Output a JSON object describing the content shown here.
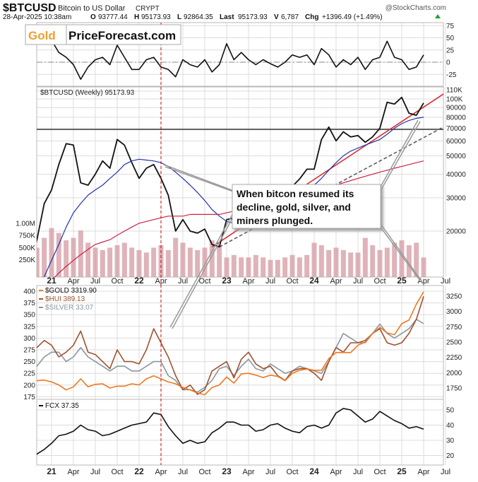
{
  "header": {
    "symbol": "$BTCUSD",
    "name": "Bitcoin to US Dollar",
    "exchange": "CRYPT",
    "source": "@StockCharts.com",
    "date": "28-Apr-2025 10:38am",
    "open_label": "O",
    "open": "93777.44",
    "high_label": "H",
    "high": "95173.93",
    "low_label": "L",
    "low": "92864.35",
    "last_label": "Last",
    "last": "95173.93",
    "volume_label": "V",
    "volume": "6,787",
    "change_label": "Chg",
    "change": "+1396.49 (+1.49%)",
    "change_color": "#2a9d2a"
  },
  "logo": {
    "part1": "Gold",
    "part2": "PriceForecast.com",
    "part1_color": "#f0a030"
  },
  "main_label": "$BTCUSD (Weekly) 95173.93",
  "callout": {
    "lines": [
      "When bitcon resumed its",
      "decline, gold, silver, and",
      "miners plunged."
    ]
  },
  "chart_data": {
    "type": "line",
    "x_tick_labels": [
      "21",
      "Apr",
      "Jul",
      "Oct",
      "22",
      "Apr",
      "Jul",
      "Oct",
      "23",
      "Apr",
      "Jul",
      "Oct",
      "24",
      "Apr",
      "Jul",
      "Oct",
      "25",
      "Apr",
      "Jul"
    ],
    "vertical_marker": {
      "date": "2022-04",
      "color": "#cc0000",
      "style": "dashed"
    },
    "x": [
      "2020-10",
      "2020-11",
      "2020-12",
      "2021-01",
      "2021-02",
      "2021-03",
      "2021-04",
      "2021-05",
      "2021-06",
      "2021-07",
      "2021-08",
      "2021-09",
      "2021-10",
      "2021-11",
      "2021-12",
      "2022-01",
      "2022-02",
      "2022-03",
      "2022-04",
      "2022-05",
      "2022-06",
      "2022-07",
      "2022-08",
      "2022-09",
      "2022-10",
      "2022-11",
      "2022-12",
      "2023-01",
      "2023-02",
      "2023-03",
      "2023-04",
      "2023-05",
      "2023-06",
      "2023-07",
      "2023-08",
      "2023-09",
      "2023-10",
      "2023-11",
      "2023-12",
      "2024-01",
      "2024-02",
      "2024-03",
      "2024-04",
      "2024-05",
      "2024-06",
      "2024-07",
      "2024-08",
      "2024-09",
      "2024-10",
      "2024-11",
      "2024-12",
      "2025-01",
      "2025-02",
      "2025-03",
      "2025-04"
    ],
    "panels": [
      {
        "id": "oscillator",
        "y_ticks": [
          75,
          50,
          25,
          0,
          -25
        ],
        "zero_line": true,
        "series": [
          {
            "color": "#111111",
            "values": [
              25,
              45,
              40,
              45,
              20,
              10,
              -5,
              -35,
              -10,
              5,
              10,
              -5,
              35,
              10,
              -15,
              -15,
              5,
              10,
              -10,
              -15,
              -30,
              5,
              -5,
              -10,
              5,
              -20,
              -5,
              38,
              5,
              20,
              5,
              -5,
              5,
              -3,
              -10,
              0,
              15,
              10,
              15,
              -5,
              28,
              15,
              -10,
              5,
              -5,
              10,
              -15,
              5,
              10,
              43,
              10,
              5,
              -15,
              -10,
              15
            ]
          }
        ]
      },
      {
        "id": "price",
        "scale": "log",
        "y_ticks": [
          "110K",
          "100K",
          "90000",
          "80000",
          "70000",
          "60000",
          "50000",
          "40000",
          "30000",
          "20000"
        ],
        "y_tick_values": [
          110000,
          100000,
          90000,
          80000,
          70000,
          60000,
          50000,
          40000,
          30000,
          20000
        ],
        "volume_ticks": [
          "1.00M",
          "750K",
          "500K",
          "250K"
        ],
        "volume_tick_values": [
          1000000,
          750000,
          500000,
          250000
        ],
        "horizontal_line": 69000,
        "trendlines": [
          {
            "color": "#dd2222",
            "style": "solid",
            "from": [
              "2022-11",
              16500
            ],
            "to": [
              "2025-07",
              108000
            ]
          },
          {
            "color": "#555555",
            "style": "dashed",
            "from": [
              "2022-12",
              16500
            ],
            "to": [
              "2025-07",
              72000
            ]
          }
        ],
        "series": [
          {
            "role": "price",
            "color": "#111111",
            "values": [
              13000,
              18000,
              28000,
              33000,
              45000,
              58000,
              57000,
              36000,
              35000,
              40000,
              47000,
              43000,
              61000,
              57000,
              46000,
              38000,
              43000,
              45000,
              38000,
              31000,
              20000,
              23000,
              20000,
              19500,
              20500,
              17000,
              16500,
              23000,
              23500,
              28000,
              29000,
              27000,
              30500,
              29000,
              26000,
              27000,
              34500,
              37700,
              42500,
              42500,
              61000,
              71000,
              60000,
              67000,
              63000,
              64000,
              59000,
              63000,
              70000,
              96000,
              94000,
              102000,
              84000,
              82000,
              95174
            ]
          },
          {
            "role": "ma-short",
            "color": "#2233aa",
            "values": [
              9000,
              10000,
              11500,
              14000,
              17000,
              21000,
              25000,
              28000,
              31000,
              33000,
              35000,
              38000,
              41000,
              45000,
              47000,
              48000,
              47500,
              47000,
              46000,
              44000,
              41000,
              38000,
              35000,
              32000,
              29000,
              26000,
              24000,
              22500,
              22000,
              22000,
              22500,
              23000,
              24000,
              25500,
              26500,
              27500,
              28500,
              30000,
              32000,
              35000,
              38000,
              42000,
              46000,
              50000,
              53000,
              55000,
              57000,
              59000,
              61000,
              65000,
              70000,
              74000,
              77000,
              79000,
              80000
            ]
          },
          {
            "role": "ma-long",
            "color": "#cc2244",
            "values": [
              9000,
              9500,
              10000,
              11000,
              12000,
              13000,
              14000,
              15000,
              16000,
              17000,
              17500,
              18000,
              19000,
              20000,
              21000,
              22000,
              22500,
              23000,
              23500,
              24000,
              24000,
              24000,
              24500,
              24500,
              24500,
              24500,
              24500,
              25000,
              25500,
              26000,
              26500,
              27000,
              27500,
              28000,
              28500,
              29000,
              29500,
              30000,
              31000,
              32000,
              33000,
              34000,
              35000,
              36000,
              37000,
              38000,
              39000,
              40000,
              41000,
              42000,
              43000,
              44000,
              45000,
              46000,
              47000
            ]
          },
          {
            "role": "volume",
            "color": "#d49aa2",
            "values": [
              600000,
              500000,
              700000,
              900000,
              800000,
              650000,
              700000,
              850000,
              600000,
              500000,
              450000,
              500000,
              550000,
              600000,
              500000,
              450000,
              400000,
              500000,
              550000,
              450000,
              700000,
              600000,
              500000,
              450000,
              500000,
              650000,
              550000,
              300000,
              350000,
              300000,
              300000,
              350000,
              300000,
              250000,
              250000,
              300000,
              350000,
              300000,
              350000,
              600000,
              550000,
              450000,
              500000,
              450000,
              400000,
              400000,
              700000,
              550000,
              450000,
              500000,
              600000,
              650000,
              550000,
              600000,
              300000
            ]
          }
        ]
      },
      {
        "id": "metals",
        "left_ticks": [
          400,
          375,
          350,
          325,
          300,
          275,
          250,
          225,
          200,
          175
        ],
        "right_ticks": [
          3250,
          3000,
          2750,
          2500,
          2250,
          2000,
          1750
        ],
        "series": [
          {
            "name": "$GOLD 3319.90",
            "color": "#f07820",
            "axis": "right",
            "values": [
              1900,
              1870,
              1880,
              1850,
              1800,
              1720,
              1770,
              1900,
              1770,
              1810,
              1820,
              1750,
              1780,
              1780,
              1820,
              1800,
              1900,
              1950,
              1900,
              1850,
              1820,
              1760,
              1720,
              1670,
              1640,
              1760,
              1800,
              1930,
              1830,
              1980,
              1990,
              1960,
              1920,
              1960,
              1940,
              1870,
              1990,
              2040,
              2060,
              2040,
              2040,
              2230,
              2330,
              2330,
              2330,
              2450,
              2500,
              2640,
              2740,
              2650,
              2620,
              2800,
              2860,
              3120,
              3320
            ]
          },
          {
            "name": "$HUI 389.13",
            "color": "#a0522d",
            "axis": "left",
            "values": [
              320,
              280,
              295,
              285,
              260,
              270,
              285,
              315,
              270,
              265,
              250,
              235,
              275,
              250,
              250,
              245,
              275,
              320,
              290,
              260,
              220,
              190,
              200,
              180,
              190,
              230,
              240,
              250,
              215,
              255,
              270,
              245,
              235,
              240,
              220,
              210,
              230,
              235,
              235,
              225,
              210,
              250,
              280,
              270,
              290,
              290,
              295,
              310,
              320,
              290,
              285,
              290,
              310,
              340,
              389
            ]
          },
          {
            "name": "$SILVER 33.07",
            "color": "#8a96a0",
            "axis": "left",
            "values": [
              24,
              24,
              26,
              27,
              27,
              25,
              26,
              28,
              26,
              25,
              24,
              23,
              24,
              24,
              23,
              23,
              24,
              25,
              25,
              22,
              21,
              19,
              19,
              18.5,
              19.5,
              21,
              23.5,
              24,
              22,
              24,
              25.5,
              23.5,
              23,
              24.5,
              23.5,
              22.5,
              23,
              24,
              23.5,
              23,
              22.5,
              25,
              28,
              31,
              30,
              29,
              29,
              31,
              33,
              31,
              30,
              31,
              32,
              34,
              33.07
            ]
          }
        ]
      },
      {
        "id": "fcx",
        "right_ticks": [
          50,
          40,
          30,
          20
        ],
        "series": [
          {
            "name": "FCX 37.35",
            "color": "#111111",
            "values": [
              17,
              21,
              24,
              28,
              33,
              34,
              36,
              40,
              37,
              36,
              33,
              34,
              36,
              38,
              40,
              41,
              42,
              48,
              47,
              39,
              33,
              28,
              30,
              28,
              29,
              35,
              38,
              42,
              42,
              40,
              40,
              36,
              37,
              40,
              41,
              38,
              36,
              35,
              39,
              40,
              38,
              40,
              48,
              51,
              50,
              46,
              42,
              44,
              49,
              46,
              43,
              41,
              38,
              39,
              37.35
            ]
          }
        ]
      }
    ]
  }
}
